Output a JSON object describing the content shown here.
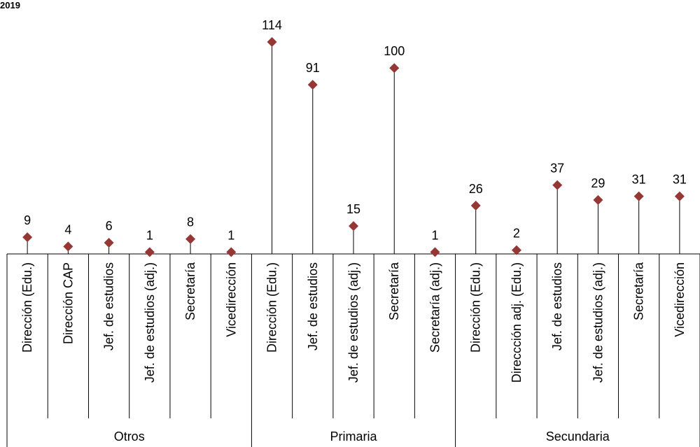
{
  "header": {
    "corner_label": "2019"
  },
  "chart_data": {
    "type": "scatter",
    "title": "",
    "xlabel": "",
    "ylabel": "",
    "ylim": [
      0,
      114
    ],
    "grid": false,
    "marker_color": "#953735",
    "groups": [
      {
        "name": "Otros",
        "categories": [
          "Dirección (Edu.)",
          "Dirección CAP",
          "Jef. de estudios",
          "Jef. de estudios (adj.)",
          "Secretaría",
          "Vicedirección"
        ],
        "values": [
          9,
          4,
          6,
          1,
          8,
          1
        ]
      },
      {
        "name": "Primaria",
        "categories": [
          "Dirección (Edu.)",
          "Jef. de estudios",
          "Jef. de estudios (adj.)",
          "Secretaría",
          "Secretaría (adj.)"
        ],
        "values": [
          114,
          91,
          15,
          100,
          1
        ]
      },
      {
        "name": "Secundaria",
        "categories": [
          "Dirección (Edu.)",
          "Direccción adj. (Edu.)",
          "Jef. de estudios",
          "Jef. de estudios (adj.)",
          "Secretaría",
          "Vicedirección"
        ],
        "values": [
          26,
          2,
          37,
          29,
          31,
          31
        ]
      }
    ]
  }
}
